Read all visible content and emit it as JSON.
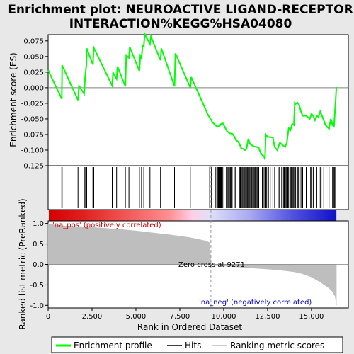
{
  "chart_data": {
    "type": "line",
    "title_lines": [
      "Enrichment plot: NEUROACTIVE LIGAND-RECEPTOR",
      "INTERACTION%KEGG%HSA04080"
    ],
    "es_panel": {
      "ylabel": "Enrichment score (ES)",
      "ylim": [
        -0.125,
        0.085
      ],
      "yticks": [
        "0.075",
        "0.050",
        "0.025",
        "0.000",
        "-0.025",
        "-0.050",
        "-0.075",
        "-0.100",
        "-0.125"
      ],
      "ytick_values": [
        0.075,
        0.05,
        0.025,
        0.0,
        -0.025,
        -0.05,
        -0.075,
        -0.1,
        -0.125
      ],
      "series_name": "Enrichment profile",
      "color": "#00ff00",
      "x": [
        0,
        780,
        800,
        1700,
        1760,
        2050,
        2100,
        2180,
        2200,
        2550,
        2600,
        3650,
        3700,
        3900,
        3950,
        4400,
        4450,
        4600,
        4650,
        5200,
        5250,
        5320,
        5380,
        5450,
        5500,
        5800,
        5850,
        6400,
        6450,
        7200,
        7250,
        8100,
        8150,
        9100,
        9200,
        9300,
        9350,
        9600,
        9750,
        9850,
        9950,
        10100,
        10200,
        10350,
        10500,
        10600,
        10700,
        10800,
        10900,
        11000,
        11100,
        11200,
        11300,
        11400,
        11500,
        11700,
        11900,
        12000,
        12100,
        12200,
        12300,
        12350,
        12400,
        12500,
        12650,
        12800,
        12900,
        13050,
        13200,
        13350,
        13500,
        13600,
        13700,
        13800,
        13900,
        14000,
        14050,
        14100,
        14200,
        14300,
        14400,
        14500,
        14700,
        14900,
        15000,
        15100,
        15200,
        15300,
        15400,
        15500,
        15600,
        15800,
        16000,
        16100,
        16200,
        16280,
        16320,
        16380,
        16420
      ],
      "y": [
        0.028,
        -0.018,
        0.036,
        -0.02,
        0.003,
        -0.01,
        0.015,
        0.038,
        0.063,
        0.037,
        0.064,
        0.003,
        0.024,
        0.014,
        0.034,
        0.002,
        0.052,
        0.048,
        0.065,
        0.027,
        0.051,
        0.047,
        0.068,
        0.066,
        0.086,
        0.07,
        0.082,
        0.044,
        0.063,
        0.002,
        0.055,
        0.0,
        0.017,
        -0.043,
        -0.048,
        -0.052,
        -0.055,
        -0.062,
        -0.062,
        -0.058,
        -0.057,
        -0.065,
        -0.07,
        -0.073,
        -0.074,
        -0.078,
        -0.084,
        -0.086,
        -0.09,
        -0.097,
        -0.098,
        -0.1,
        -0.098,
        -0.082,
        -0.09,
        -0.094,
        -0.095,
        -0.097,
        -0.104,
        -0.108,
        -0.11,
        -0.115,
        -0.075,
        -0.079,
        -0.079,
        -0.08,
        -0.095,
        -0.1,
        -0.088,
        -0.092,
        -0.095,
        -0.088,
        -0.065,
        -0.068,
        -0.058,
        -0.06,
        -0.024,
        -0.026,
        -0.024,
        -0.028,
        -0.038,
        -0.045,
        -0.045,
        -0.05,
        -0.042,
        -0.045,
        -0.052,
        -0.045,
        -0.047,
        -0.038,
        -0.045,
        -0.06,
        -0.066,
        -0.05,
        -0.06,
        -0.062,
        -0.045,
        -0.02,
        0.001
      ]
    },
    "hits_panel": {
      "label": "Hits",
      "hit_x": [
        780,
        800,
        1700,
        2050,
        2100,
        2180,
        2200,
        2550,
        2600,
        3650,
        3900,
        4400,
        4600,
        5200,
        5320,
        5450,
        5800,
        6400,
        7200,
        8100,
        9200,
        9300,
        9550,
        9650,
        9700,
        9780,
        9820,
        9860,
        9900,
        9950,
        10150,
        10200,
        10250,
        10300,
        10330,
        10380,
        10420,
        10480,
        10650,
        10700,
        10900,
        10950,
        11000,
        11050,
        11100,
        11150,
        11200,
        11250,
        11300,
        11350,
        11400,
        11450,
        11500,
        11550,
        11600,
        11650,
        11700,
        11750,
        11800,
        11850,
        11900,
        11950,
        12000,
        12200,
        12300,
        12400,
        12450,
        12550,
        12650,
        12800,
        12900,
        13150,
        13200,
        13300,
        13400,
        13450,
        13500,
        13550,
        13600,
        13650,
        13700,
        13800,
        13850,
        13900,
        13950,
        14000,
        14050,
        14100,
        14200,
        14250,
        14300,
        14400,
        14500,
        14700,
        14950,
        15000,
        15100,
        15300,
        15500,
        15550,
        15700,
        16000,
        16200,
        16280,
        16320,
        16380
      ]
    },
    "rank_panel": {
      "ylabel": "Ranked list metric (PreRanked)",
      "ylim": [
        -1.0,
        1.0
      ],
      "yticks": [
        "1.0",
        "0.5",
        "0.0",
        "-0.5",
        "-1.0"
      ],
      "ytick_values": [
        1.0,
        0.5,
        0.0,
        -0.5,
        -1.0
      ],
      "series_name": "Ranking metric scores",
      "x": [
        0,
        100,
        500,
        1000,
        2000,
        3000,
        4000,
        5000,
        6000,
        7000,
        8000,
        8500,
        9000,
        9200,
        9271,
        9300,
        10000,
        11000,
        12000,
        13000,
        14000,
        14500,
        15000,
        15500,
        16000,
        16200,
        16350,
        16420
      ],
      "y": [
        1.0,
        0.98,
        0.96,
        0.94,
        0.92,
        0.89,
        0.86,
        0.82,
        0.77,
        0.72,
        0.66,
        0.62,
        0.57,
        0.53,
        0.0,
        -0.02,
        -0.04,
        -0.07,
        -0.1,
        -0.13,
        -0.18,
        -0.23,
        -0.31,
        -0.43,
        -0.58,
        -0.67,
        -0.78,
        -1.0
      ],
      "pos_label": "'na_pos' (positively correlated)",
      "neg_label": "'na_neg' (negatively correlated)",
      "zero_cross_label": "Zero cross at 9271",
      "zero_cross": 9271
    },
    "xaxis": {
      "xlabel": "Rank in Ordered Dataset",
      "xlim": [
        0,
        17100
      ],
      "xticks": [
        "0",
        "2,500",
        "5,000",
        "7,500",
        "10,000",
        "12,500",
        "15,000"
      ],
      "xtick_values": [
        0,
        2500,
        5000,
        7500,
        10000,
        12500,
        15000
      ],
      "n_genes": 16420
    },
    "legend": {
      "placement": "bottom",
      "entries": [
        {
          "label": "Enrichment profile",
          "color": "#00ff00"
        },
        {
          "label": "Hits",
          "color": "#000000"
        },
        {
          "label": "Ranking metric scores",
          "color": "#bebebe"
        }
      ]
    }
  }
}
